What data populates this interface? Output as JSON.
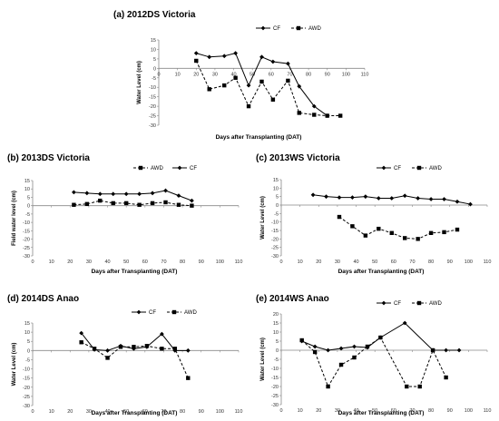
{
  "chart_data": [
    {
      "type": "line",
      "title": "(a) 2012DS Victoria",
      "xlabel": "Days after Transplanting (DAT)",
      "ylabel": "Water Level (cm)",
      "xlim": [
        0,
        110
      ],
      "ylim": [
        -30,
        15
      ],
      "xticks": [
        0,
        10,
        20,
        30,
        40,
        50,
        60,
        70,
        80,
        90,
        100,
        110
      ],
      "yticks": [
        15,
        10,
        5,
        0,
        -5,
        -10,
        -15,
        -20,
        -25,
        -30
      ],
      "legend_position": "top",
      "series": [
        {
          "name": "CF",
          "marker": "diamond",
          "dashed": false,
          "x": [
            20,
            27,
            35,
            41,
            48,
            55,
            61,
            69,
            75,
            83,
            90
          ],
          "y": [
            8,
            6,
            6.5,
            8,
            -9,
            6,
            3.5,
            2.5,
            -9.5,
            -20,
            -25
          ]
        },
        {
          "name": "AWD",
          "marker": "square",
          "dashed": true,
          "x": [
            20,
            27,
            35,
            41,
            48,
            55,
            61,
            69,
            75,
            83,
            90,
            97
          ],
          "y": [
            4,
            -11,
            -9,
            -5,
            -20,
            -7,
            -16.5,
            -6.5,
            -23.5,
            -24.5,
            -25,
            -25
          ]
        }
      ]
    },
    {
      "type": "line",
      "title": "(b) 2013DS Victoria",
      "xlabel": "Days after Transplanting (DAT)",
      "ylabel": "Field water level (cm)",
      "xlim": [
        0,
        110
      ],
      "ylim": [
        -30,
        15
      ],
      "xticks": [
        0,
        10,
        20,
        30,
        40,
        50,
        60,
        70,
        80,
        90,
        100,
        110
      ],
      "yticks": [
        15,
        10,
        5,
        0,
        -5,
        -10,
        -15,
        -20,
        -25,
        -30
      ],
      "legend_position": "top",
      "series": [
        {
          "name": "AWD",
          "marker": "square",
          "dashed": true,
          "x": [
            22,
            29,
            36,
            43,
            50,
            57,
            64,
            71,
            78,
            85
          ],
          "y": [
            0.5,
            1,
            3,
            1.5,
            1.5,
            0.5,
            1.5,
            2,
            0.5,
            0
          ]
        },
        {
          "name": "CF",
          "marker": "diamond",
          "dashed": false,
          "x": [
            22,
            29,
            36,
            43,
            50,
            57,
            64,
            71,
            78,
            85
          ],
          "y": [
            8,
            7.5,
            7,
            7,
            7,
            7,
            7.5,
            9,
            6,
            3
          ]
        }
      ]
    },
    {
      "type": "line",
      "title": "(c) 2013WS Victoria",
      "xlabel": "Days after Transplanting (DAT)",
      "ylabel": "Water Level (cm)",
      "xlim": [
        0,
        110
      ],
      "ylim": [
        -30,
        15
      ],
      "xticks": [
        0,
        10,
        20,
        30,
        40,
        50,
        60,
        70,
        80,
        90,
        100,
        110
      ],
      "yticks": [
        15,
        10,
        5,
        0,
        -5,
        -10,
        -15,
        -20,
        -25,
        -30
      ],
      "legend_position": "top",
      "series": [
        {
          "name": "CF",
          "marker": "diamond",
          "dashed": false,
          "x": [
            17,
            24,
            31,
            38,
            45,
            52,
            59,
            66,
            73,
            80,
            87,
            94,
            101
          ],
          "y": [
            6,
            5,
            4.5,
            4.5,
            5,
            4,
            4,
            5.5,
            4,
            3.5,
            3.5,
            2,
            0.5
          ]
        },
        {
          "name": "AWD",
          "marker": "square",
          "dashed": true,
          "x": [
            31,
            38,
            45,
            52,
            59,
            66,
            73,
            80,
            87,
            94
          ],
          "y": [
            -7,
            -12.5,
            -18,
            -14,
            -16.5,
            -19.5,
            -20,
            -16.5,
            -16,
            -14.5
          ]
        }
      ]
    },
    {
      "type": "line",
      "title": "(d) 2014DS Anao",
      "xlabel": "Days after Transplanting (DAT)",
      "ylabel": "Water Level (cm)",
      "xlim": [
        0,
        110
      ],
      "ylim": [
        -30,
        15
      ],
      "xticks": [
        0,
        10,
        20,
        30,
        40,
        50,
        60,
        70,
        80,
        90,
        100,
        110
      ],
      "yticks": [
        15,
        10,
        5,
        0,
        -5,
        -10,
        -15,
        -20,
        -25,
        -30
      ],
      "legend_position": "top",
      "series": [
        {
          "name": "CF",
          "marker": "diamond",
          "dashed": false,
          "x": [
            26,
            33,
            40,
            47,
            54,
            61,
            69,
            76,
            83
          ],
          "y": [
            9.5,
            0.5,
            0,
            2.5,
            1,
            2,
            9,
            0,
            0
          ]
        },
        {
          "name": "AWD",
          "marker": "square",
          "dashed": true,
          "x": [
            26,
            33,
            40,
            47,
            54,
            61,
            69,
            76,
            83
          ],
          "y": [
            4.5,
            1,
            -4,
            2,
            2,
            2.5,
            1,
            1,
            -15
          ]
        }
      ]
    },
    {
      "type": "line",
      "title": "(e) 2014WS Anao",
      "xlabel": "Days after Transplanting (DAT)",
      "ylabel": "Water Level (cm)",
      "xlim": [
        0,
        110
      ],
      "ylim": [
        -30,
        20
      ],
      "xticks": [
        0,
        10,
        20,
        30,
        40,
        50,
        60,
        70,
        80,
        90,
        100,
        110
      ],
      "yticks": [
        20,
        15,
        10,
        5,
        0,
        -5,
        -10,
        -15,
        -20,
        -25,
        -30
      ],
      "legend_position": "top",
      "series": [
        {
          "name": "CF",
          "marker": "diamond",
          "dashed": false,
          "x": [
            11,
            18,
            25,
            32,
            39,
            46,
            53,
            66,
            81,
            88,
            95
          ],
          "y": [
            5,
            2,
            0,
            1,
            2,
            1.5,
            7,
            15,
            0,
            0,
            0
          ]
        },
        {
          "name": "AWD",
          "marker": "square",
          "dashed": true,
          "x": [
            11,
            18,
            25,
            32,
            39,
            46,
            53,
            67,
            74,
            81,
            88
          ],
          "y": [
            5.5,
            -1,
            -20,
            -8,
            -4,
            2,
            7,
            -20,
            -20,
            0,
            -15
          ]
        }
      ]
    }
  ]
}
